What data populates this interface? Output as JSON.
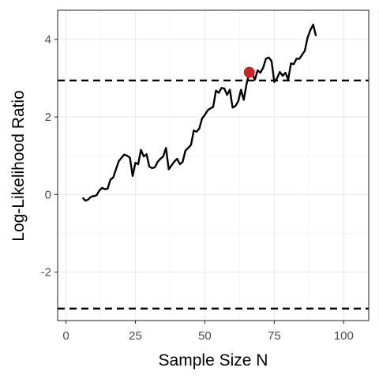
{
  "chart_data": {
    "type": "line",
    "xlabel": "Sample Size N",
    "ylabel": "Log-Likelihood Ratio",
    "xlim": [
      -3,
      109
    ],
    "ylim": [
      -3.25,
      4.75
    ],
    "x_ticks": [
      0,
      25,
      50,
      75,
      100
    ],
    "y_ticks": [
      -2,
      0,
      2,
      4
    ],
    "x_tick_labels": [
      "0",
      "25",
      "50",
      "75",
      "100"
    ],
    "y_tick_labels": [
      "-2",
      "0",
      "2",
      "4"
    ],
    "grid": true,
    "thresholds": [
      2.94,
      -2.94
    ],
    "series": [
      {
        "x": [
          6,
          7,
          8,
          9,
          10,
          11,
          12,
          13,
          14,
          15,
          16,
          17,
          18,
          19,
          20,
          21,
          22,
          23,
          24,
          25,
          26,
          27,
          28,
          29,
          30,
          31,
          32,
          33,
          34,
          35,
          36,
          37,
          38,
          39,
          40,
          41,
          42,
          43,
          44,
          45,
          46,
          47,
          48,
          49,
          50,
          51,
          52,
          53,
          54,
          55,
          56,
          57,
          58,
          59,
          60,
          61,
          62,
          63,
          64,
          65,
          66,
          67,
          68,
          69,
          70,
          71,
          72,
          73,
          74,
          75,
          76,
          77,
          78,
          79,
          80,
          81,
          82,
          83,
          84,
          85,
          86,
          87,
          88,
          89,
          90
        ],
        "y": [
          -0.08,
          -0.16,
          -0.13,
          -0.06,
          -0.04,
          -0.02,
          0.1,
          0.17,
          0.14,
          0.15,
          0.38,
          0.44,
          0.65,
          0.86,
          0.95,
          1.03,
          1.0,
          0.95,
          0.48,
          0.82,
          0.78,
          1.15,
          0.98,
          1.04,
          0.72,
          0.68,
          0.7,
          0.84,
          0.92,
          0.98,
          1.2,
          0.65,
          0.75,
          0.85,
          0.92,
          0.78,
          0.84,
          1.13,
          1.2,
          1.28,
          1.65,
          1.62,
          1.7,
          1.96,
          2.05,
          2.17,
          2.22,
          2.26,
          2.68,
          2.62,
          2.75,
          2.73,
          2.57,
          2.7,
          2.24,
          2.28,
          2.4,
          2.7,
          2.44,
          2.84,
          3.15,
          3.12,
          2.96,
          3.2,
          3.14,
          3.27,
          3.5,
          3.53,
          3.44,
          2.9,
          3.0,
          3.16,
          3.06,
          3.14,
          2.96,
          3.38,
          3.36,
          3.5,
          3.5,
          3.6,
          3.71,
          4.05,
          4.24,
          4.38,
          4.09
        ],
        "color": "#000000"
      }
    ],
    "highlight_point": {
      "x": 66,
      "y": 3.15,
      "color": "#cb2626"
    }
  }
}
